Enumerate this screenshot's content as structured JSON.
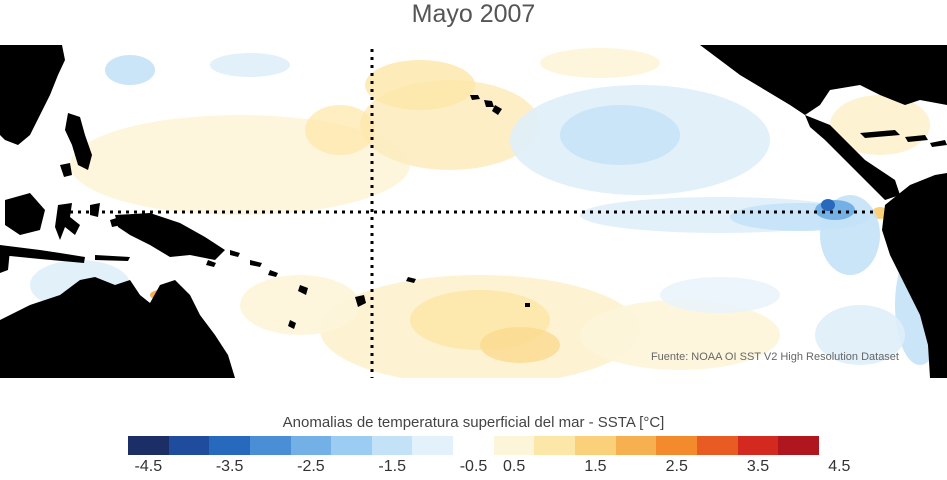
{
  "title": "Mayo 2007",
  "source": "Fuente: NOAA OI SST V2 High Resolution Dataset",
  "colorbar": {
    "title": "Anomalias de temperatura superficial del mar - SSTA  [°C]",
    "ticks": [
      "-4.5",
      "-3.5",
      "-2.5",
      "-1.5",
      "-0.5",
      "0.5",
      "1.5",
      "2.5",
      "3.5",
      "4.5"
    ],
    "colors": [
      "#1b2f66",
      "#1f4c9c",
      "#2669bd",
      "#4a8fd6",
      "#72b0e6",
      "#9bcdf2",
      "#c4e2f7",
      "#e3f1fb",
      "#ffffff",
      "#fdf5d9",
      "#fde7a8",
      "#fbd07a",
      "#f7b04f",
      "#f38a2c",
      "#e85b22",
      "#d4291e",
      "#b0161e"
    ]
  },
  "map": {
    "land_color": "#000000",
    "ocean_color": "#ffffff",
    "reference_lines": "dotted"
  }
}
